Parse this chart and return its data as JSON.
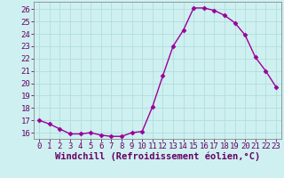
{
  "x": [
    0,
    1,
    2,
    3,
    4,
    5,
    6,
    7,
    8,
    9,
    10,
    11,
    12,
    13,
    14,
    15,
    16,
    17,
    18,
    19,
    20,
    21,
    22,
    23
  ],
  "y": [
    17.0,
    16.7,
    16.3,
    15.9,
    15.9,
    16.0,
    15.8,
    15.7,
    15.7,
    16.0,
    16.1,
    18.1,
    20.6,
    23.0,
    24.3,
    26.1,
    26.1,
    25.9,
    25.5,
    24.9,
    23.9,
    22.1,
    21.0,
    19.7
  ],
  "line_color": "#990099",
  "marker": "D",
  "markersize": 2.5,
  "linewidth": 1.0,
  "bg_color": "#cff0f0",
  "grid_color": "#b0dede",
  "yticks": [
    16,
    17,
    18,
    19,
    20,
    21,
    22,
    23,
    24,
    25,
    26
  ],
  "xticks": [
    0,
    1,
    2,
    3,
    4,
    5,
    6,
    7,
    8,
    9,
    10,
    11,
    12,
    13,
    14,
    15,
    16,
    17,
    18,
    19,
    20,
    21,
    22,
    23
  ],
  "ylim": [
    15.5,
    26.6
  ],
  "xlim": [
    -0.5,
    23.5
  ],
  "xlabel": "Windchill (Refroidissement éolien,°C)",
  "tick_fontsize": 6.5,
  "xlabel_fontsize": 7.5,
  "tick_color": "#660066",
  "spine_color": "#888888"
}
